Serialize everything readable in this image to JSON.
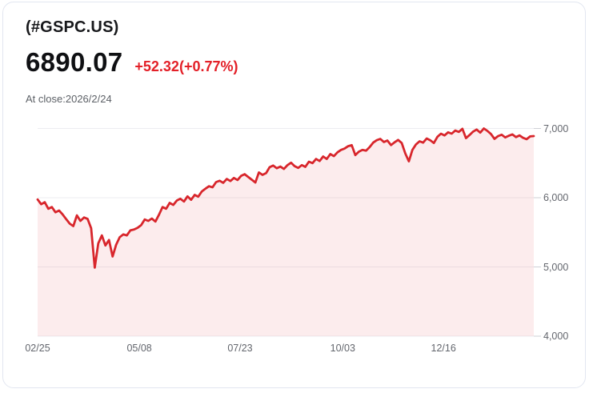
{
  "header": {
    "symbol": "(#GSPC.US)",
    "price": "6890.07",
    "change": "+52.32(+0.77%)",
    "as_of": "At close:2026/2/24"
  },
  "colors": {
    "accent_red": "#e32028",
    "line": "#d8262c",
    "fill": "rgba(216,38,44,0.085)",
    "grid": "#ededf1",
    "tick": "#cfd0d6",
    "axis_text": "#63666d",
    "title": "#17181b",
    "price": "#0f1013",
    "muted": "#5d6167",
    "card_border": "#e2e6f0",
    "card_bg": "#ffffff"
  },
  "chart_data": {
    "type": "area",
    "title": "#GSPC.US one-year price history",
    "xlabel": "",
    "ylabel": "",
    "grid": true,
    "legend": "none",
    "ylim": [
      4000,
      7150
    ],
    "x_ticks": [
      {
        "label": "02/25",
        "pos": 0.0
      },
      {
        "label": "05/08",
        "pos": 0.205
      },
      {
        "label": "07/23",
        "pos": 0.408
      },
      {
        "label": "10/03",
        "pos": 0.615
      },
      {
        "label": "12/16",
        "pos": 0.818
      }
    ],
    "y_ticks": [
      {
        "label": "7,000",
        "value": 7000
      },
      {
        "label": "6,000",
        "value": 6000
      },
      {
        "label": "5,000",
        "value": 5000
      },
      {
        "label": "4,000",
        "value": 4000
      }
    ],
    "series": [
      {
        "name": "#GSPC.US",
        "last_close": 6890.07,
        "values": [
          5975,
          5905,
          5935,
          5840,
          5865,
          5790,
          5815,
          5760,
          5690,
          5625,
          5590,
          5745,
          5665,
          5715,
          5695,
          5560,
          4990,
          5340,
          5455,
          5310,
          5390,
          5150,
          5320,
          5430,
          5470,
          5455,
          5530,
          5540,
          5565,
          5605,
          5685,
          5665,
          5700,
          5655,
          5755,
          5865,
          5840,
          5925,
          5895,
          5960,
          5985,
          5945,
          6020,
          5970,
          6040,
          6015,
          6090,
          6130,
          6165,
          6150,
          6225,
          6245,
          6215,
          6270,
          6240,
          6285,
          6255,
          6315,
          6340,
          6300,
          6260,
          6220,
          6365,
          6330,
          6355,
          6440,
          6465,
          6425,
          6450,
          6415,
          6470,
          6505,
          6455,
          6430,
          6470,
          6445,
          6520,
          6500,
          6560,
          6530,
          6595,
          6560,
          6630,
          6600,
          6655,
          6690,
          6710,
          6745,
          6760,
          6615,
          6665,
          6690,
          6680,
          6730,
          6795,
          6830,
          6850,
          6805,
          6825,
          6760,
          6800,
          6835,
          6790,
          6640,
          6525,
          6690,
          6770,
          6815,
          6795,
          6855,
          6830,
          6790,
          6880,
          6925,
          6900,
          6945,
          6925,
          6970,
          6950,
          6995,
          6860,
          6905,
          6955,
          6985,
          6940,
          7000,
          6965,
          6920,
          6850,
          6890,
          6910,
          6870,
          6895,
          6915,
          6875,
          6900,
          6865,
          6845,
          6885,
          6890
        ]
      }
    ]
  }
}
